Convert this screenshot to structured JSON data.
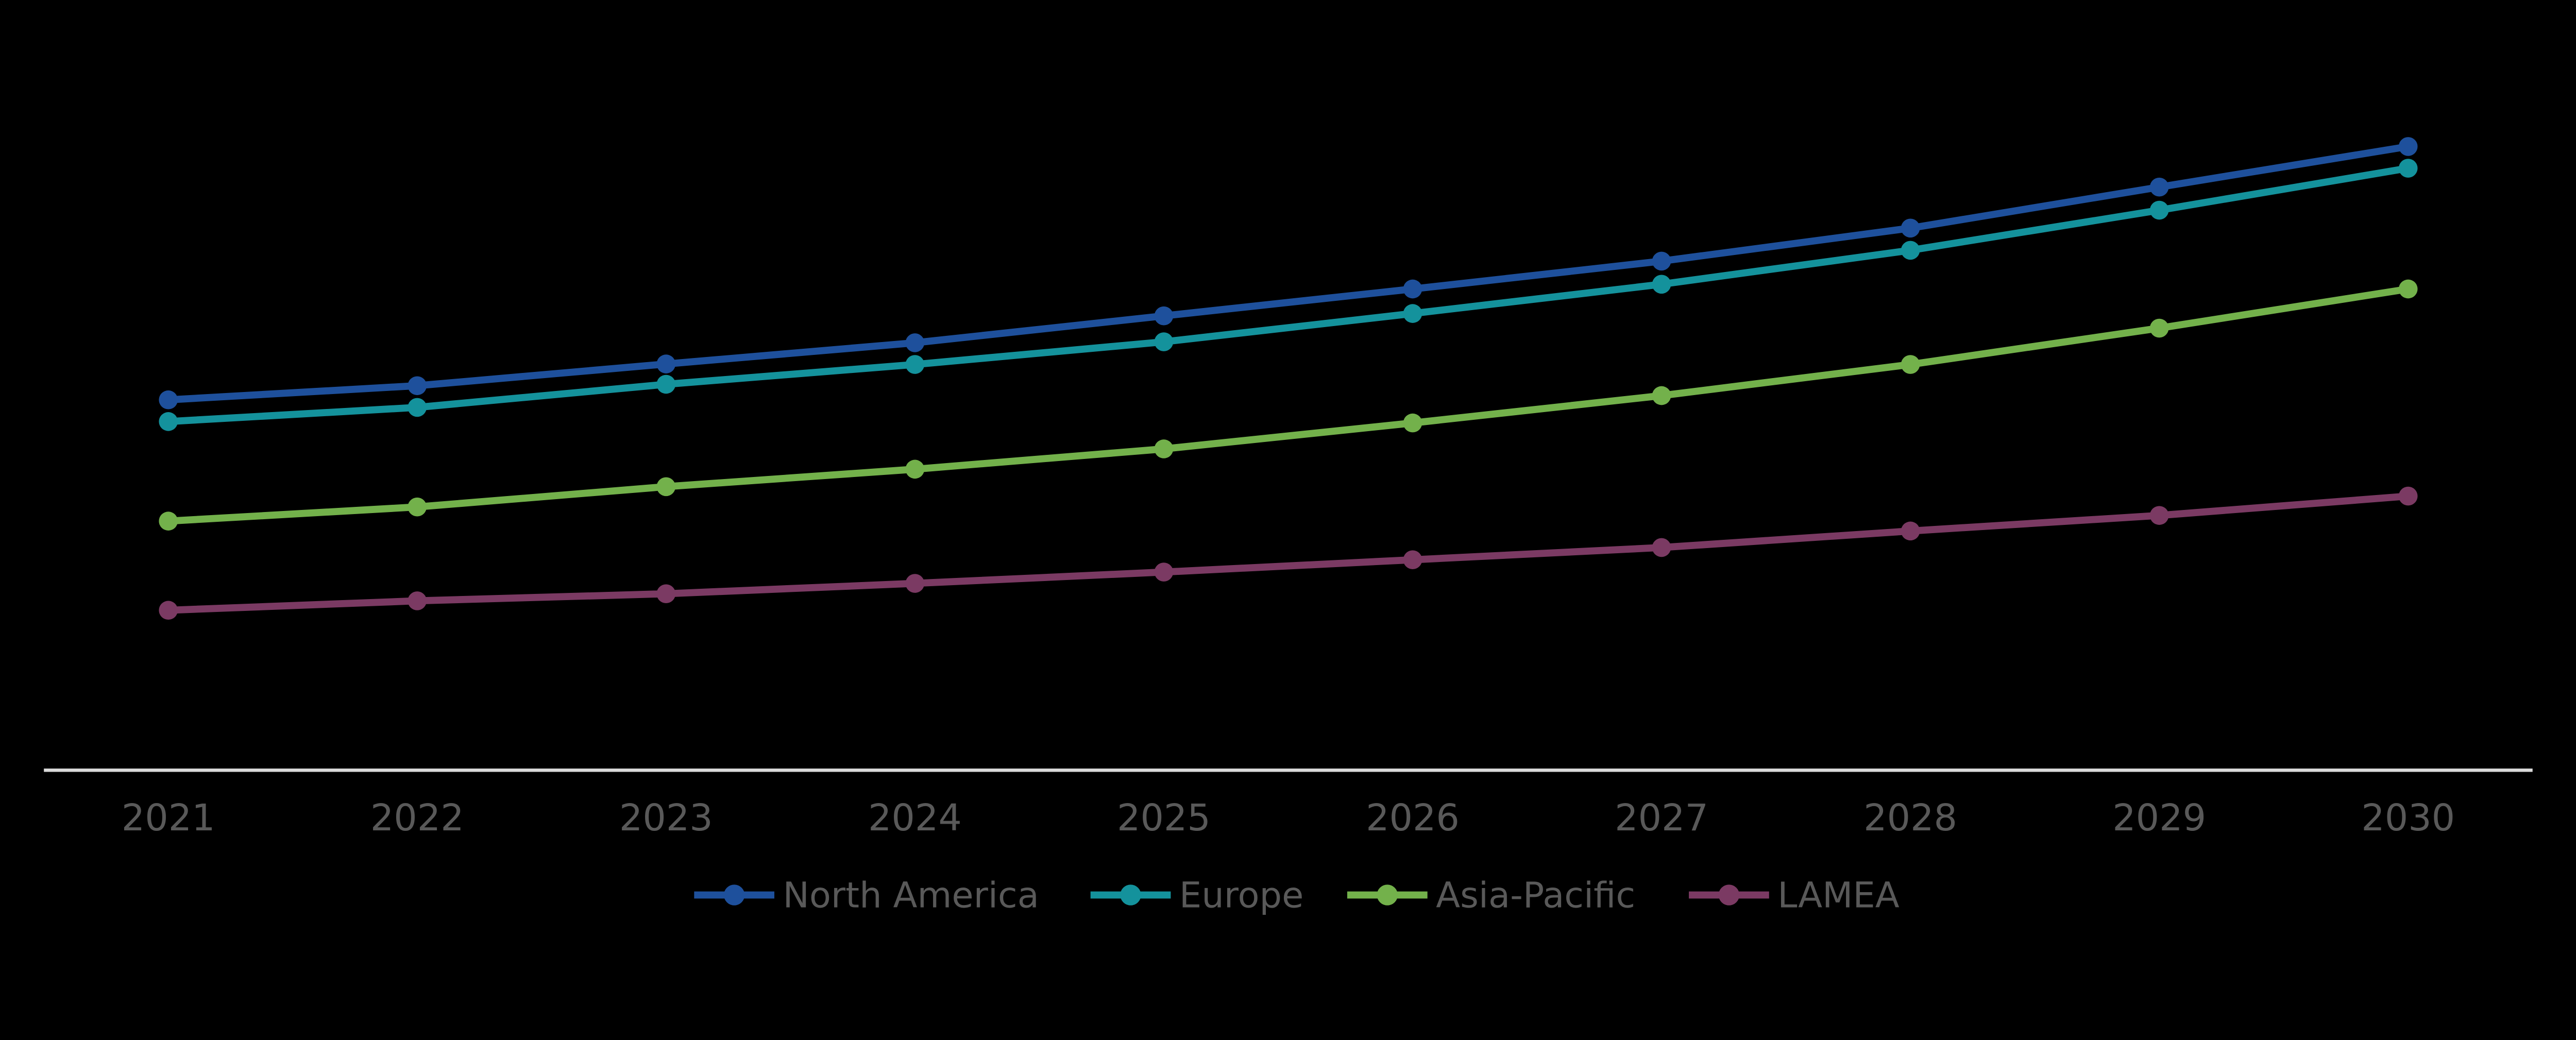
{
  "page": {
    "background_color": "#000000"
  },
  "chart_data": {
    "type": "line",
    "title": "",
    "xlabel": "",
    "ylabel": "",
    "categories": [
      2021,
      2022,
      2023,
      2024,
      2025,
      2026,
      2027,
      2028,
      2029,
      2030
    ],
    "series": [
      {
        "name": "North America",
        "color": "#1E509C",
        "values": [
          78.5,
          81.5,
          86.1,
          90.6,
          96.3,
          102.0,
          107.9,
          114.9,
          123.6,
          132.2
        ]
      },
      {
        "name": "Europe",
        "color": "#14929C",
        "values": [
          73.9,
          76.9,
          81.8,
          86.0,
          90.8,
          96.8,
          103.0,
          110.2,
          118.7,
          127.6
        ]
      },
      {
        "name": "Asia-Pacific",
        "color": "#73B14B",
        "values": [
          52.8,
          55.8,
          60.1,
          63.8,
          68.1,
          73.6,
          79.4,
          86.0,
          93.7,
          102.0
        ]
      },
      {
        "name": "LAMEA",
        "color": "#7B3A63",
        "values": [
          33.9,
          35.9,
          37.4,
          39.6,
          42.0,
          44.6,
          47.2,
          50.7,
          54.0,
          58.1
        ]
      }
    ],
    "ylim": [
      0,
      150
    ],
    "y_axis_visible": false,
    "grid": false,
    "marker": "circle",
    "legend_position": "bottom",
    "legend_labels": [
      "North America",
      "Europe",
      "Asia-Pacific",
      "LAMEA"
    ],
    "axis_line_color": "#D9D9D9",
    "tick_label_color": "#595959",
    "legend_text_color": "#595959",
    "value_scale_note": "no y-axis labels shown; values estimated in arbitrary units from plot heights"
  }
}
